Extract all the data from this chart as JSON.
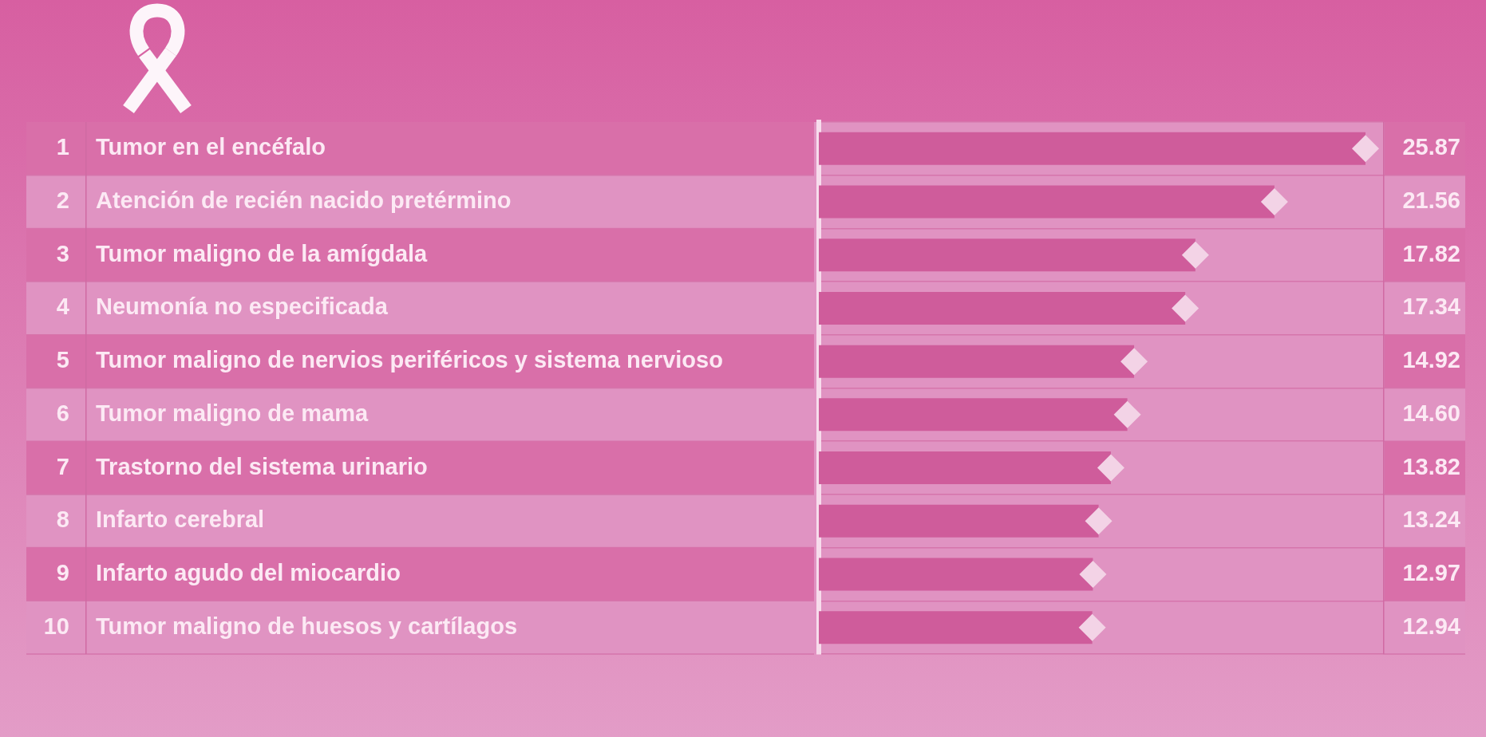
{
  "chart_data": {
    "type": "bar",
    "orientation": "horizontal",
    "categories": [
      "Tumor en el encéfalo",
      "Atención de recién nacido pretérmino",
      "Tumor maligno de la amígdala",
      "Neumonía no especificada",
      "Tumor maligno de nervios periféricos y sistema nervioso",
      "Tumor maligno de mama",
      "Trastorno del sistema urinario",
      "Infarto cerebral",
      "Infarto agudo del miocardio",
      "Tumor maligno de huesos y cartílagos"
    ],
    "series": [
      {
        "type": "bar",
        "color": "#cf5c9b",
        "values": [
          25.87,
          21.56,
          17.82,
          17.34,
          14.92,
          14.6,
          13.82,
          13.24,
          12.97,
          12.94
        ],
        "value_labels": [
          "25.87",
          "21.56",
          "17.82",
          "17.34",
          "14.92",
          "14.60",
          "13.82",
          "13.24",
          "12.97",
          "12.94"
        ]
      },
      {
        "type": "scatter",
        "color": "#f3d3e6",
        "marker": "diamond",
        "values": [
          25.87,
          21.56,
          17.82,
          17.34,
          14.92,
          14.6,
          13.82,
          13.24,
          12.97,
          12.94
        ]
      }
    ],
    "xlim": [
      0,
      26.7
    ],
    "tick_labels": "y",
    "grid": "y",
    "annotations": [
      "1",
      "2",
      "3",
      "4",
      "5",
      "6",
      "7",
      "8",
      "9",
      "10"
    ]
  }
}
